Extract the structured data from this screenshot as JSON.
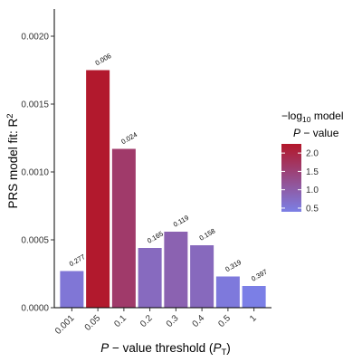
{
  "chart_data": {
    "type": "bar",
    "categories": [
      "0.001",
      "0.05",
      "0.1",
      "0.2",
      "0.3",
      "0.4",
      "0.5",
      "1"
    ],
    "values": [
      0.00027,
      0.00175,
      0.00117,
      0.00044,
      0.00056,
      0.00046,
      0.00023,
      0.00016
    ],
    "bar_labels": [
      "0.277",
      "0.006",
      "0.024",
      "0.165",
      "0.119",
      "0.158",
      "0.319",
      "0.397"
    ],
    "neg_log10_p": [
      0.56,
      2.22,
      1.62,
      0.78,
      0.92,
      0.8,
      0.5,
      0.4
    ],
    "ylim": [
      0,
      0.0022
    ],
    "yticks": [
      "0.0000",
      "0.0005",
      "0.0010",
      "0.0015",
      "0.0020"
    ],
    "xlabel_main": "P",
    "xlabel_rest": " − value threshold (",
    "xlabel_sub_main": "P",
    "xlabel_sub": "T",
    "xlabel_end": ")",
    "ylabel": "PRS model fit:  R",
    "ylabel_sup": "2",
    "legend": {
      "title_line1_prefix": "−log",
      "title_line1_sub": "10",
      "title_line1_suffix": " model",
      "title_line2_italic": "P",
      "title_line2_rest": " − value",
      "ticks": [
        "2.0",
        "1.5",
        "1.0",
        "0.5"
      ],
      "tick_values": [
        2.0,
        1.5,
        1.0,
        0.5
      ],
      "range": [
        0.4,
        2.25
      ],
      "color_low": "#7b7fe6",
      "color_high": "#b3172a"
    },
    "grid": false,
    "legend_position": "right"
  }
}
